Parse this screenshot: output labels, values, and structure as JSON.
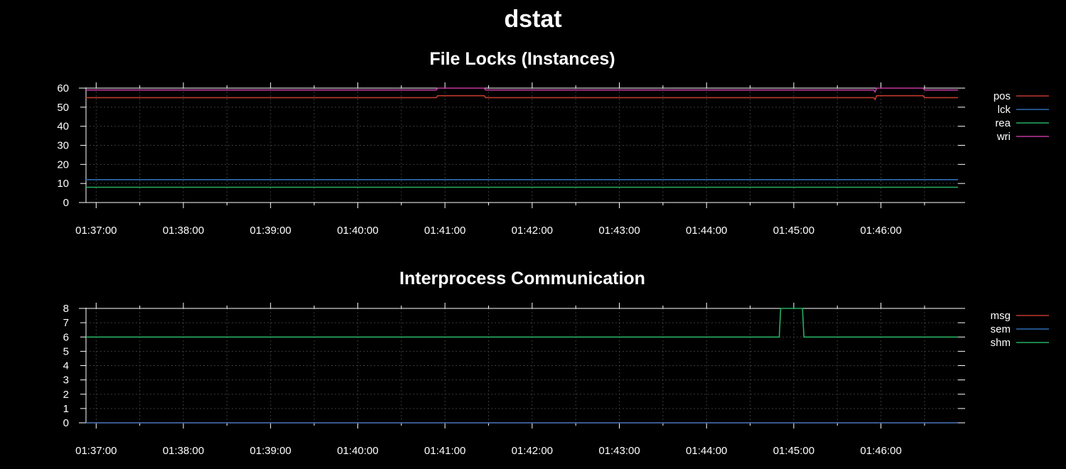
{
  "title": "dstat",
  "colors": {
    "background": "#000000",
    "frame": "#ffffff",
    "grid": "#3a3a3a"
  },
  "chart_data": [
    {
      "type": "line",
      "title": "File Locks (Instances)",
      "xlabel": "",
      "ylabel": "",
      "x_ticks": [
        "01:37:00",
        "01:38:00",
        "01:39:00",
        "01:40:00",
        "01:41:00",
        "01:42:00",
        "01:43:00",
        "01:44:00",
        "01:45:00",
        "01:46:00"
      ],
      "xlim": [
        "01:36:53",
        "01:46:53"
      ],
      "ylim": [
        0,
        60
      ],
      "y_ticks": [
        0,
        10,
        20,
        30,
        40,
        50,
        60
      ],
      "grid": true,
      "legend": "right",
      "series": [
        {
          "name": "pos",
          "color": "#c0392b",
          "points": [
            [
              "01:36:53",
              55
            ],
            [
              "01:40:54",
              55
            ],
            [
              "01:40:55",
              56
            ],
            [
              "01:41:27",
              56
            ],
            [
              "01:41:28",
              55
            ],
            [
              "01:45:55",
              55
            ],
            [
              "01:45:56",
              54
            ],
            [
              "01:45:57",
              56
            ],
            [
              "01:46:29",
              56
            ],
            [
              "01:46:30",
              55
            ],
            [
              "01:46:53",
              55
            ]
          ]
        },
        {
          "name": "lck",
          "color": "#2e6db4",
          "points": [
            [
              "01:36:53",
              12
            ],
            [
              "01:46:53",
              12
            ]
          ]
        },
        {
          "name": "rea",
          "color": "#27ae60",
          "points": [
            [
              "01:36:53",
              8
            ],
            [
              "01:46:53",
              8
            ]
          ]
        },
        {
          "name": "wri",
          "color": "#c0399e",
          "points": [
            [
              "01:36:53",
              59
            ],
            [
              "01:40:54",
              59
            ],
            [
              "01:40:55",
              60
            ],
            [
              "01:41:27",
              60
            ],
            [
              "01:41:28",
              59
            ],
            [
              "01:45:55",
              59
            ],
            [
              "01:45:56",
              58
            ],
            [
              "01:45:57",
              60
            ],
            [
              "01:46:29",
              60
            ],
            [
              "01:46:30",
              59
            ],
            [
              "01:46:53",
              59
            ]
          ]
        }
      ]
    },
    {
      "type": "line",
      "title": "Interprocess Communication",
      "xlabel": "",
      "ylabel": "",
      "x_ticks": [
        "01:37:00",
        "01:38:00",
        "01:39:00",
        "01:40:00",
        "01:41:00",
        "01:42:00",
        "01:43:00",
        "01:44:00",
        "01:45:00",
        "01:46:00"
      ],
      "xlim": [
        "01:36:53",
        "01:46:53"
      ],
      "ylim": [
        0,
        8
      ],
      "y_ticks": [
        0,
        1,
        2,
        3,
        4,
        5,
        6,
        7,
        8
      ],
      "grid": true,
      "legend": "right",
      "series": [
        {
          "name": "msg",
          "color": "#c0392b",
          "points": [
            [
              "01:36:53",
              0
            ],
            [
              "01:46:53",
              0
            ]
          ]
        },
        {
          "name": "sem",
          "color": "#2e6db4",
          "points": [
            [
              "01:36:53",
              0
            ],
            [
              "01:46:53",
              0
            ]
          ]
        },
        {
          "name": "shm",
          "color": "#27ae60",
          "points": [
            [
              "01:36:53",
              6
            ],
            [
              "01:44:50",
              6
            ],
            [
              "01:44:51",
              8
            ],
            [
              "01:45:06",
              8
            ],
            [
              "01:45:07",
              6
            ],
            [
              "01:46:53",
              6
            ]
          ]
        }
      ]
    }
  ]
}
